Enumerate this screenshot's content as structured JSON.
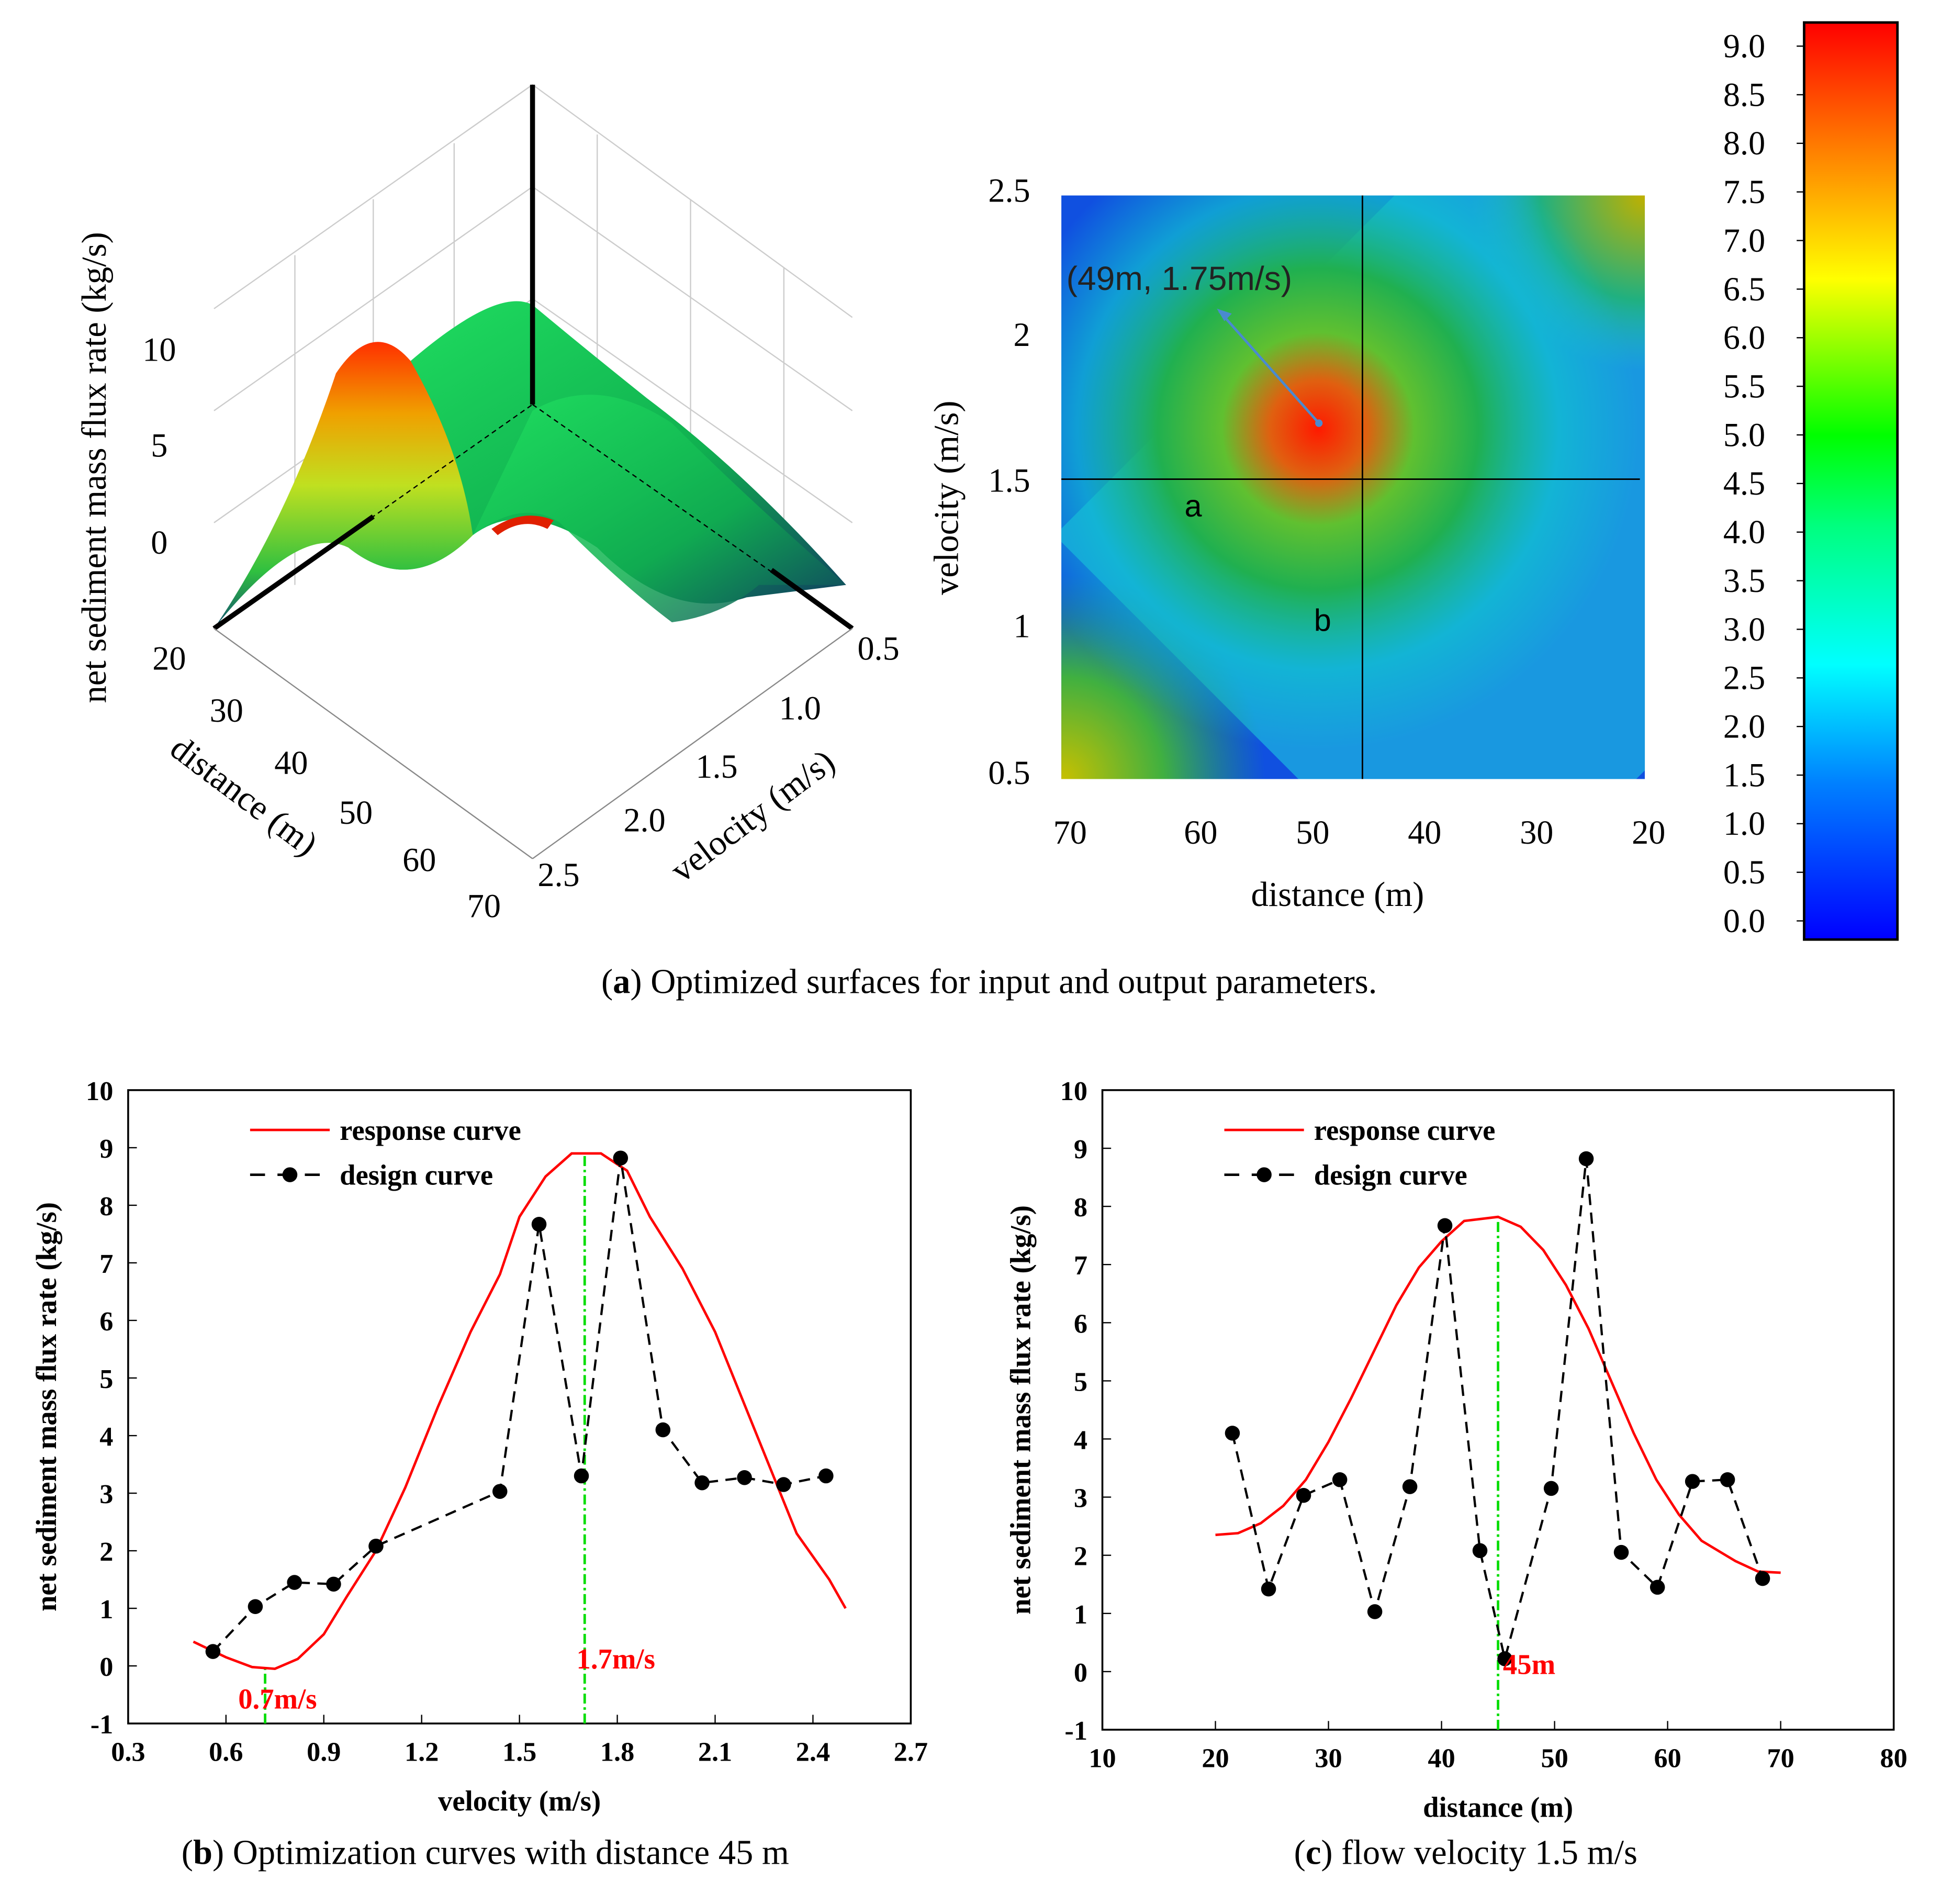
{
  "captions": {
    "a": {
      "label": "a",
      "text": " Optimized surfaces for input and output parameters."
    },
    "b": {
      "label": "b",
      "text": " Optimization curves with distance 45 m"
    },
    "c": {
      "label": "c",
      "text": " flow velocity 1.5 m/s"
    }
  },
  "surface3d": {
    "zlabel": "net sediment mass flux rate (kg/s)",
    "xlabel": "distance (m)",
    "ylabel": "velocity (m/s)",
    "zticks": [
      "10",
      "5",
      "0"
    ],
    "xticks": [
      "20",
      "30",
      "40",
      "50",
      "60",
      "70"
    ],
    "yticks": [
      "0.5",
      "1.0",
      "1.5",
      "2.0",
      "2.5"
    ]
  },
  "heatmap": {
    "xlabel": "distance (m)",
    "ylabel": "velocity (m/s)",
    "xticks": [
      "70",
      "60",
      "50",
      "40",
      "30",
      "20"
    ],
    "yticks": [
      "2.5",
      "2",
      "1.5",
      "1",
      "0.5"
    ],
    "annotation": "(49m,   1.75m/s)",
    "point_a": "a",
    "point_b": "b"
  },
  "colorbar": {
    "ticks": [
      "9.0",
      "8.5",
      "8.0",
      "7.5",
      "7.0",
      "6.5",
      "6.0",
      "5.5",
      "5.0",
      "4.5",
      "4.0",
      "3.5",
      "3.0",
      "2.5",
      "2.0",
      "1.5",
      "1.0",
      "0.5",
      "0.0"
    ],
    "colors": [
      "#0000ff",
      "#0080ff",
      "#00ffff",
      "#00ff80",
      "#00ff00",
      "#ffff00",
      "#ff8000",
      "#ff0000"
    ]
  },
  "chart_data": [
    {
      "type": "line",
      "title": "Optimization curves with distance 45 m",
      "xlabel": "velocity (m/s)",
      "ylabel": "net sediment mass flux rate (kg/s)",
      "xlim": [
        0.3,
        2.7
      ],
      "ylim": [
        -1,
        10
      ],
      "xticks": [
        "0.3",
        "0.6",
        "0.9",
        "1.2",
        "1.5",
        "1.8",
        "2.1",
        "2.4",
        "2.7"
      ],
      "yticks": [
        "-1",
        "0",
        "1",
        "2",
        "3",
        "4",
        "5",
        "6",
        "7",
        "8",
        "9",
        "10"
      ],
      "legend": {
        "position": "top-left",
        "entries": [
          "response curve",
          "design curve"
        ]
      },
      "series": [
        {
          "name": "response curve",
          "color": "#ff0000",
          "x": [
            0.5,
            0.6,
            0.68,
            0.75,
            0.82,
            0.9,
            0.97,
            1.06,
            1.15,
            1.25,
            1.35,
            1.44,
            1.5,
            1.58,
            1.66,
            1.75,
            1.83,
            1.9,
            2.0,
            2.1,
            2.2,
            2.3,
            2.35,
            2.45,
            2.5
          ],
          "y": [
            0.42,
            0.15,
            -0.02,
            -0.05,
            0.12,
            0.55,
            1.2,
            2.0,
            3.1,
            4.5,
            5.8,
            6.8,
            7.8,
            8.5,
            8.9,
            8.9,
            8.6,
            7.8,
            6.9,
            5.8,
            4.4,
            3.0,
            2.3,
            1.5,
            1.0
          ]
        },
        {
          "name": "design curve",
          "color": "#000000",
          "x": [
            0.56,
            0.69,
            0.81,
            0.93,
            1.06,
            1.44,
            1.56,
            1.69,
            1.81,
            1.94,
            2.06,
            2.19,
            2.31,
            2.44
          ],
          "y": [
            0.25,
            1.03,
            1.45,
            1.42,
            2.08,
            3.03,
            7.67,
            3.3,
            8.82,
            4.1,
            3.18,
            3.27,
            3.15,
            3.3
          ]
        }
      ],
      "markers": [
        {
          "x": 0.72,
          "y_top": 0,
          "label": "0.7m/s"
        },
        {
          "x": 1.7,
          "y_top": 8.9,
          "label": "1.7m/s"
        }
      ]
    },
    {
      "type": "line",
      "title": "flow velocity 1.5 m/s",
      "xlabel": "distance (m)",
      "ylabel": "net sediment mass flux rate (kg/s)",
      "xlim": [
        10,
        80
      ],
      "ylim": [
        -1,
        10
      ],
      "xticks": [
        "10",
        "20",
        "30",
        "40",
        "50",
        "60",
        "70",
        "80"
      ],
      "yticks": [
        "-1",
        "0",
        "1",
        "2",
        "3",
        "4",
        "5",
        "6",
        "7",
        "8",
        "9",
        "10"
      ],
      "legend": {
        "position": "top-left",
        "entries": [
          "response curve",
          "design curve"
        ]
      },
      "series": [
        {
          "name": "response curve",
          "color": "#ff0000",
          "x": [
            20,
            22,
            24,
            26,
            28,
            30,
            32,
            34,
            36,
            38,
            40,
            42,
            45,
            47,
            49,
            51,
            53,
            55,
            57,
            59,
            61,
            63,
            66,
            68,
            70
          ],
          "y": [
            2.35,
            2.38,
            2.55,
            2.85,
            3.3,
            3.95,
            4.7,
            5.5,
            6.3,
            6.95,
            7.4,
            7.75,
            7.82,
            7.65,
            7.25,
            6.65,
            5.9,
            5.0,
            4.1,
            3.3,
            2.7,
            2.25,
            1.9,
            1.72,
            1.7
          ]
        },
        {
          "name": "design curve",
          "color": "#000000",
          "x": [
            21.5,
            24.7,
            27.8,
            31,
            34.1,
            37.2,
            40.3,
            43.4,
            45.6,
            49.7,
            52.8,
            55.9,
            59.1,
            62.2,
            65.3,
            68.4
          ],
          "y": [
            4.1,
            1.42,
            3.03,
            3.3,
            1.03,
            3.18,
            7.67,
            2.08,
            0.22,
            3.15,
            8.82,
            2.05,
            1.45,
            3.27,
            3.3,
            1.6
          ]
        }
      ],
      "markers": [
        {
          "x": 45,
          "y_top": 7.82,
          "label": "45m"
        }
      ]
    }
  ]
}
